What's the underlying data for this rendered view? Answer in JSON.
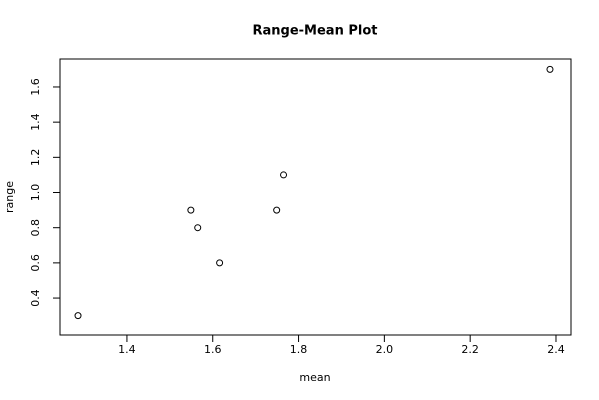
{
  "chart_data": {
    "type": "scatter",
    "title": "Range-Mean Plot",
    "xlabel": "mean",
    "ylabel": "range",
    "x": [
      1.286,
      1.549,
      1.565,
      1.616,
      1.749,
      1.765,
      2.386
    ],
    "values": [
      0.3,
      0.9,
      0.8,
      0.6,
      0.9,
      1.1,
      1.7
    ],
    "color": "#000000",
    "xlim": [
      1.244,
      2.435
    ],
    "ylim": [
      0.19,
      1.759
    ],
    "xticks": [
      1.4,
      1.6,
      1.8,
      {
        "value": 2,
        "label": "2.0"
      },
      2.2,
      2.4
    ],
    "yticks": [
      0.4,
      0.6,
      0.8,
      {
        "value": 1,
        "label": "1.0"
      },
      1.2,
      1.4,
      1.6
    ],
    "grid": false
  }
}
